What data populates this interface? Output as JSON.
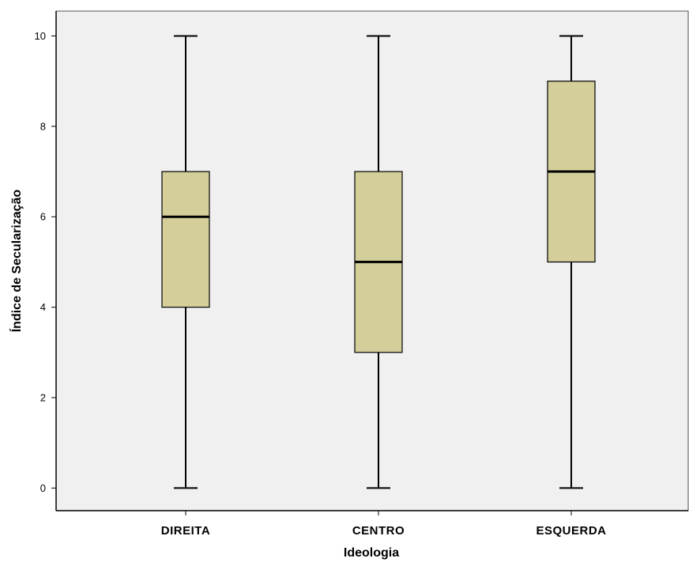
{
  "chart_data": {
    "type": "boxplot",
    "title": "",
    "xlabel": "Ideologia",
    "ylabel": "Índice de Secularização",
    "ylim": [
      -0.5,
      10.55
    ],
    "yticks": [
      0,
      2,
      4,
      6,
      8,
      10
    ],
    "categories": [
      "DIREITA",
      "CENTRO",
      "ESQUERDA"
    ],
    "boxes": [
      {
        "category": "DIREITA",
        "min": 0,
        "q1": 4,
        "median": 6,
        "q3": 7,
        "max": 10
      },
      {
        "category": "CENTRO",
        "min": 0,
        "q1": 3,
        "median": 5,
        "q3": 7,
        "max": 10
      },
      {
        "category": "ESQUERDA",
        "min": 0,
        "q1": 5,
        "median": 7,
        "q3": 9,
        "max": 10
      }
    ],
    "grid": false,
    "colors": {
      "plot_background": "#f0f0f0",
      "box_fill": "#d3ce9a",
      "line": "#000000"
    }
  }
}
